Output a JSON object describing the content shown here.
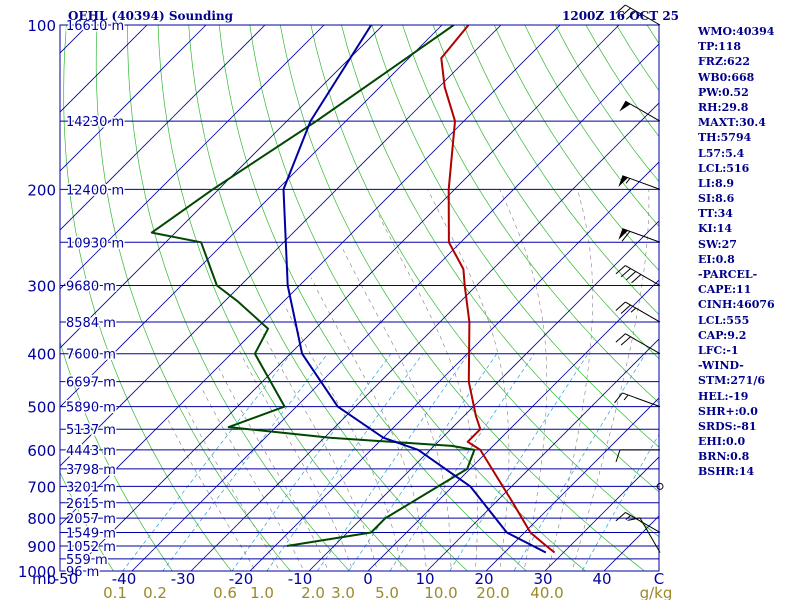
{
  "header": {
    "station": "OEHL (40394) Sounding",
    "time": "1200Z 16 OCT 25"
  },
  "indices": [
    "WMO:40394",
    "TP:118",
    "FRZ:622",
    "WB0:668",
    "PW:0.52",
    "RH:29.8",
    "MAXT:30.4",
    "TH:5794",
    "L57:5.4",
    "LCL:516",
    "LI:8.9",
    "SI:8.6",
    "TT:34",
    "KI:14",
    "SW:27",
    "EI:0.8",
    "-PARCEL-",
    "CAPE:11",
    "CINH:46076",
    "LCL:555",
    "CAP:9.2",
    "LFC:-1",
    "-WIND-",
    "STM:271/6",
    "HEL:-19",
    "SHR+:0.0",
    "SRDS:-81",
    "EHI:0.0",
    "BRN:0.8",
    "BSHR:14"
  ],
  "chart_data": {
    "type": "line",
    "title": "OEHL (40394) Sounding",
    "pressure_ticks": [
      100,
      200,
      300,
      400,
      500,
      600,
      700,
      800,
      900,
      1000
    ],
    "pressure_axis_unit": "mb",
    "temperature_ticks": [
      "-50",
      "-40",
      "-30",
      "-20",
      "-10",
      "0",
      "10",
      "20",
      "30",
      "40",
      "C"
    ],
    "mixing_ratio_labels": [
      "0.1",
      "0.2",
      "0.6",
      "1.0",
      "2.0",
      "3.0",
      "5.0",
      "10.0",
      "20.0",
      "40.0",
      "g/kg"
    ],
    "height_labels": [
      {
        "p": 100,
        "label": "16610 m"
      },
      {
        "p": 150,
        "label": "14230 m"
      },
      {
        "p": 200,
        "label": "12400 m"
      },
      {
        "p": 250,
        "label": "10930 m"
      },
      {
        "p": 300,
        "label": "9680 m"
      },
      {
        "p": 350,
        "label": "8584 m"
      },
      {
        "p": 400,
        "label": "7600 m"
      },
      {
        "p": 450,
        "label": "6697 m"
      },
      {
        "p": 500,
        "label": "5890 m"
      },
      {
        "p": 550,
        "label": "5137 m"
      },
      {
        "p": 600,
        "label": "4443 m"
      },
      {
        "p": 650,
        "label": "3798 m"
      },
      {
        "p": 700,
        "label": "3201 m"
      },
      {
        "p": 750,
        "label": "2615 m"
      },
      {
        "p": 800,
        "label": "2057 m"
      },
      {
        "p": 850,
        "label": "1549 m"
      },
      {
        "p": 900,
        "label": "1052 m"
      },
      {
        "p": 950,
        "label": "559 m"
      },
      {
        "p": 1000,
        "label": "96 m"
      }
    ],
    "series": [
      {
        "color": "#b00000",
        "points": [
          [
            -75.5,
            100
          ],
          [
            -74.5,
            115
          ],
          [
            -69,
            130
          ],
          [
            -61.5,
            150
          ],
          [
            -51,
            200
          ],
          [
            -42,
            250
          ],
          [
            -35,
            280
          ],
          [
            -32,
            300
          ],
          [
            -25,
            350
          ],
          [
            -15,
            450
          ],
          [
            -8,
            520
          ],
          [
            -5,
            550
          ],
          [
            -5,
            580
          ],
          [
            -1.5,
            600
          ],
          [
            13,
            750
          ],
          [
            21,
            850
          ],
          [
            26,
            900
          ],
          [
            28.5,
            925
          ]
        ]
      },
      {
        "color": "#004800",
        "points": [
          [
            -78,
            100
          ],
          [
            -85,
            150
          ],
          [
            -91,
            200
          ],
          [
            -94,
            240
          ],
          [
            -84,
            250
          ],
          [
            -74,
            300
          ],
          [
            -68,
            320
          ],
          [
            -58,
            360
          ],
          [
            -56,
            400
          ],
          [
            -42,
            500
          ],
          [
            -48,
            545
          ],
          [
            -29,
            570
          ],
          [
            -7,
            590
          ],
          [
            -2.5,
            600
          ],
          [
            -0.5,
            650
          ],
          [
            -6,
            800
          ],
          [
            -6,
            850
          ],
          [
            -18,
            900
          ]
        ]
      },
      {
        "color": "#0000a0",
        "points": [
          [
            -92,
            100
          ],
          [
            -86,
            150
          ],
          [
            -79,
            200
          ],
          [
            -62,
            300
          ],
          [
            -48,
            400
          ],
          [
            -33,
            500
          ],
          [
            -20,
            570
          ],
          [
            -12,
            600
          ],
          [
            3,
            700
          ],
          [
            17,
            850
          ],
          [
            27,
            925
          ]
        ]
      }
    ],
    "wind_profile": [
      {
        "p": 100,
        "dir": 300,
        "kt": 35
      },
      {
        "p": 150,
        "dir": 300,
        "kt": 50
      },
      {
        "p": 200,
        "dir": 290,
        "kt": 55
      },
      {
        "p": 250,
        "dir": 290,
        "kt": 60
      },
      {
        "p": 300,
        "dir": 300,
        "kt": 40
      },
      {
        "p": 350,
        "dir": 300,
        "kt": 25
      },
      {
        "p": 400,
        "dir": 300,
        "kt": 20
      },
      {
        "p": 500,
        "dir": 290,
        "kt": 15
      },
      {
        "p": 600,
        "dir": 270,
        "kt": 10
      },
      {
        "p": 700,
        "dir": 0,
        "kt": 0
      },
      {
        "p": 850,
        "dir": 300,
        "kt": 15
      },
      {
        "p": 925,
        "dir": 330,
        "kt": 10
      }
    ]
  }
}
